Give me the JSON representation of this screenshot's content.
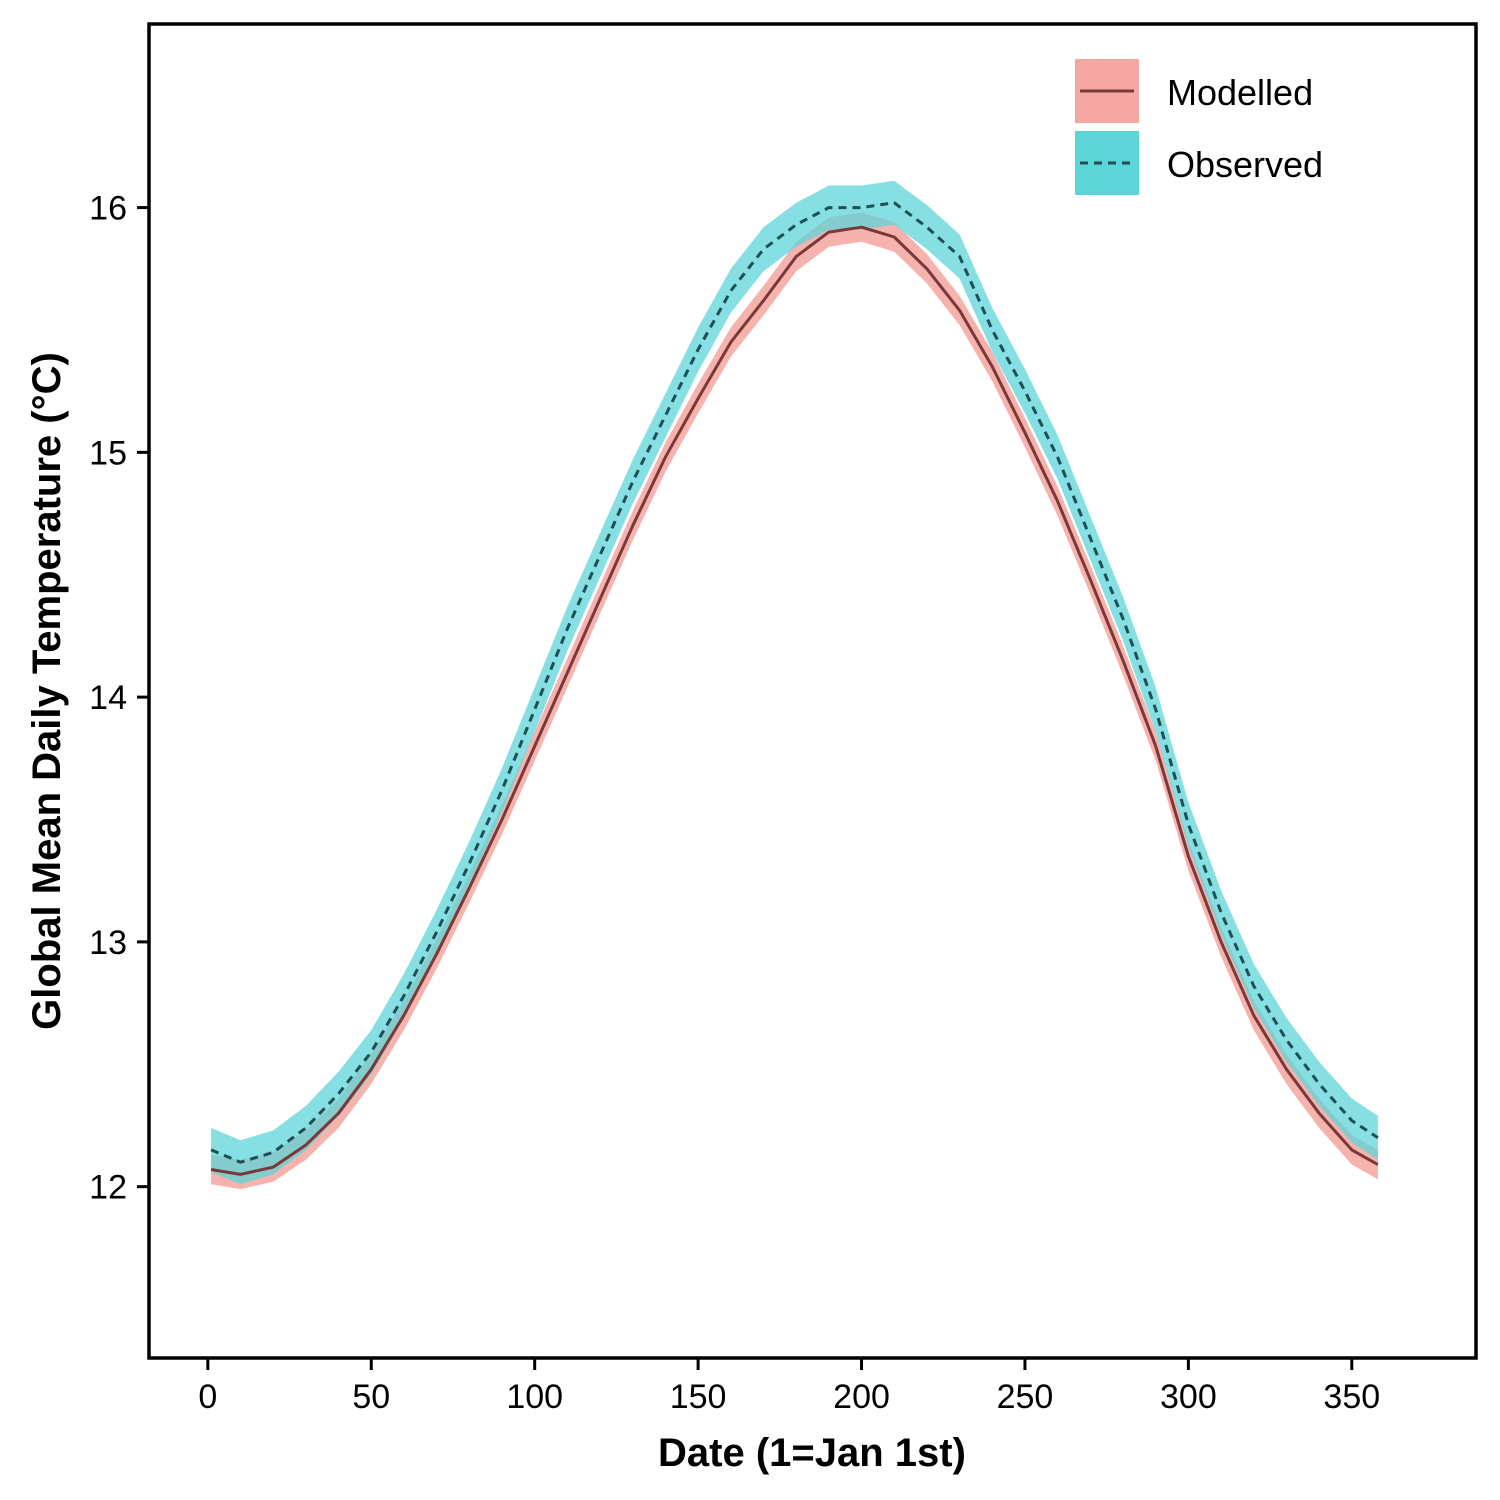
{
  "chart_data": {
    "type": "line",
    "title": "",
    "xlabel": "Date (1=Jan 1st)",
    "ylabel": "Global Mean Daily Temperature (°C)",
    "xlim": [
      -18,
      388
    ],
    "ylim": [
      11.3,
      16.75
    ],
    "x_ticks": [
      0,
      50,
      100,
      150,
      200,
      250,
      300,
      350
    ],
    "x_tick_labels": [
      "0",
      "50",
      "100",
      "150",
      "200",
      "250",
      "300",
      "350"
    ],
    "y_ticks": [
      12,
      13,
      14,
      15,
      16
    ],
    "y_tick_labels": [
      "12",
      "13",
      "14",
      "15",
      "16"
    ],
    "grid": false,
    "legend_position": "top-right",
    "x": [
      1,
      10,
      20,
      30,
      40,
      50,
      60,
      70,
      80,
      90,
      100,
      110,
      120,
      130,
      140,
      150,
      160,
      170,
      180,
      190,
      200,
      210,
      220,
      230,
      240,
      250,
      260,
      270,
      280,
      290,
      300,
      310,
      320,
      330,
      340,
      350,
      358
    ],
    "series": [
      {
        "name": "Modelled",
        "line_style": "solid",
        "line_color": "#7a3838",
        "band_color": "#f4a6a0",
        "values": [
          12.07,
          12.05,
          12.08,
          12.17,
          12.3,
          12.48,
          12.7,
          12.95,
          13.22,
          13.5,
          13.8,
          14.1,
          14.4,
          14.7,
          14.98,
          15.22,
          15.45,
          15.62,
          15.8,
          15.9,
          15.92,
          15.88,
          15.75,
          15.58,
          15.35,
          15.08,
          14.8,
          14.48,
          14.15,
          13.8,
          13.35,
          13.0,
          12.7,
          12.48,
          12.3,
          12.15,
          12.09
        ],
        "lower": [
          12.01,
          11.99,
          12.02,
          12.11,
          12.24,
          12.42,
          12.64,
          12.89,
          13.16,
          13.44,
          13.74,
          14.04,
          14.34,
          14.64,
          14.92,
          15.16,
          15.39,
          15.56,
          15.74,
          15.84,
          15.86,
          15.82,
          15.69,
          15.52,
          15.29,
          15.02,
          14.74,
          14.42,
          14.09,
          13.74,
          13.29,
          12.94,
          12.64,
          12.42,
          12.24,
          12.09,
          12.03
        ],
        "upper": [
          12.13,
          12.11,
          12.14,
          12.23,
          12.36,
          12.54,
          12.76,
          13.01,
          13.28,
          13.56,
          13.86,
          14.16,
          14.46,
          14.76,
          15.04,
          15.28,
          15.51,
          15.68,
          15.86,
          15.96,
          15.98,
          15.94,
          15.81,
          15.64,
          15.41,
          15.14,
          14.86,
          14.54,
          14.21,
          13.86,
          13.41,
          13.06,
          12.76,
          12.54,
          12.36,
          12.21,
          12.15
        ]
      },
      {
        "name": "Observed",
        "line_style": "dashed",
        "line_color": "#1d4f55",
        "band_color": "#5dd4d8",
        "values": [
          12.15,
          12.1,
          12.14,
          12.24,
          12.38,
          12.55,
          12.78,
          13.04,
          13.32,
          13.62,
          13.95,
          14.28,
          14.58,
          14.88,
          15.15,
          15.42,
          15.66,
          15.83,
          15.93,
          16.0,
          16.0,
          16.02,
          15.92,
          15.8,
          15.5,
          15.25,
          14.98,
          14.65,
          14.32,
          13.95,
          13.48,
          13.12,
          12.82,
          12.6,
          12.42,
          12.27,
          12.2
        ],
        "lower": [
          12.06,
          12.01,
          12.05,
          12.15,
          12.29,
          12.46,
          12.69,
          12.95,
          13.23,
          13.53,
          13.86,
          14.19,
          14.49,
          14.79,
          15.06,
          15.33,
          15.57,
          15.74,
          15.84,
          15.91,
          15.91,
          15.93,
          15.83,
          15.71,
          15.41,
          15.16,
          14.89,
          14.56,
          14.23,
          13.86,
          13.39,
          13.03,
          12.73,
          12.51,
          12.33,
          12.18,
          12.11
        ],
        "upper": [
          12.24,
          12.19,
          12.23,
          12.33,
          12.47,
          12.64,
          12.87,
          13.13,
          13.41,
          13.71,
          14.04,
          14.37,
          14.67,
          14.97,
          15.24,
          15.51,
          15.75,
          15.92,
          16.02,
          16.09,
          16.09,
          16.11,
          16.01,
          15.89,
          15.59,
          15.34,
          15.07,
          14.74,
          14.41,
          14.04,
          13.57,
          13.21,
          12.91,
          12.69,
          12.51,
          12.36,
          12.29
        ]
      }
    ]
  }
}
